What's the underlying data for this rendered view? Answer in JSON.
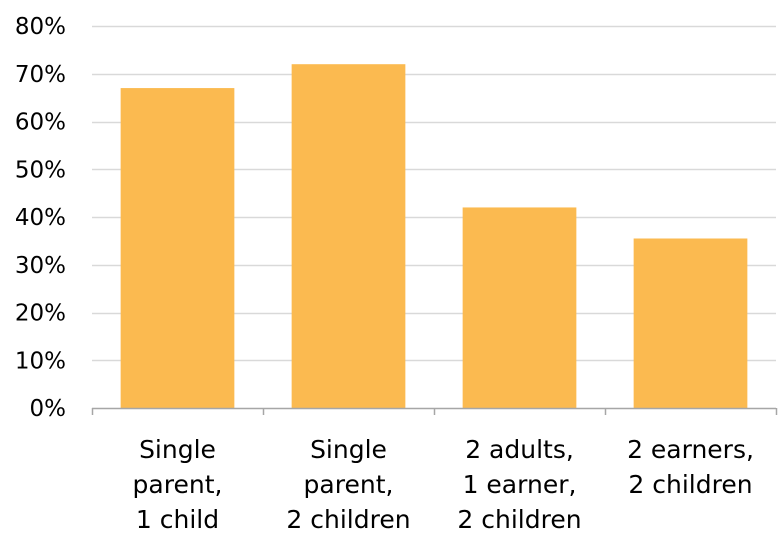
{
  "chart_data": {
    "type": "bar",
    "title": "",
    "xlabel": "",
    "ylabel": "",
    "categories": [
      [
        "Single",
        "parent,",
        "1 child"
      ],
      [
        "Single",
        "parent,",
        "2 children"
      ],
      [
        "2 adults,",
        "1 earner,",
        "2 children"
      ],
      [
        "2 earners,",
        "2 children"
      ]
    ],
    "values": [
      0.67,
      0.72,
      0.42,
      0.355
    ],
    "ylim": [
      0,
      0.8
    ],
    "yticks": [
      {
        "value": 0.0,
        "label": "0%"
      },
      {
        "value": 0.1,
        "label": "10%"
      },
      {
        "value": 0.2,
        "label": "20%"
      },
      {
        "value": 0.3,
        "label": "30%"
      },
      {
        "value": 0.4,
        "label": "40%"
      },
      {
        "value": 0.5,
        "label": "50%"
      },
      {
        "value": 0.6,
        "label": "60%"
      },
      {
        "value": 0.7,
        "label": "70%"
      },
      {
        "value": 0.8,
        "label": "80%"
      }
    ],
    "grid": true,
    "legend": "none",
    "colors": {
      "bar": "#FBBA50",
      "grid": "#D9D9D9",
      "axis": "#A6A6A6",
      "text": "#000000"
    }
  }
}
